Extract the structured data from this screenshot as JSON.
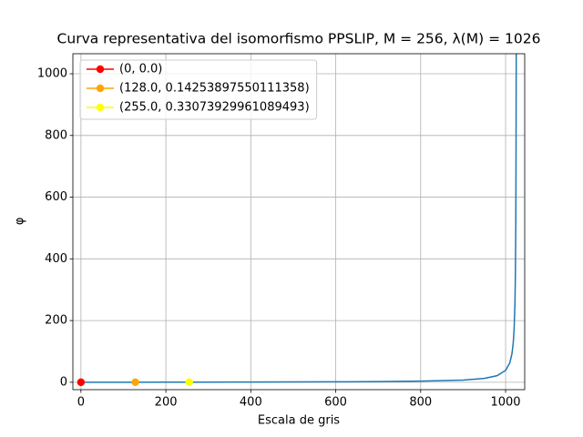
{
  "chart_data": {
    "type": "line",
    "title": "Curva representativa del isomorfismo PPSLIP, M = 256, λ(M) = 1026",
    "x_label": "Escala de gris",
    "y_label": "φ",
    "xlim": [
      -19,
      1045
    ],
    "ylim": [
      -24,
      1065
    ],
    "xticks": [
      0,
      200,
      400,
      600,
      800,
      1000
    ],
    "yticks": [
      0,
      200,
      400,
      600,
      800,
      1000
    ],
    "grid": true,
    "legend": "upper-left",
    "series": [
      {
        "color": "#1f77b4",
        "x": [
          0,
          100,
          200,
          300,
          400,
          500,
          600,
          700,
          800,
          900,
          950,
          980,
          1000,
          1010,
          1015,
          1018,
          1020,
          1022,
          1023,
          1024,
          1024.5,
          1025,
          1025.2
        ],
        "values": [
          0,
          0.108,
          0.2421,
          0.4132,
          0.639,
          0.9506,
          1.4085,
          2.1552,
          3.5398,
          7.1429,
          12.5,
          21.304,
          38.462,
          63.125,
          92.273,
          127.25,
          170,
          255.5,
          341,
          512,
          683,
          1025,
          1281.5
        ]
      },
      {
        "name": "(0, 0.0)",
        "color": "#ff0000",
        "marker": "o",
        "x": [
          0
        ],
        "values": [
          0.0
        ]
      },
      {
        "name": "(128.0, 0.14253897550111358)",
        "color": "#ffa500",
        "marker": "o",
        "x": [
          128.0
        ],
        "values": [
          0.14253897550111358
        ]
      },
      {
        "name": "(255.0, 0.33073929961089493)",
        "color": "#ffff00",
        "marker": "o",
        "x": [
          255.0
        ],
        "values": [
          0.33073929961089493
        ]
      }
    ]
  }
}
